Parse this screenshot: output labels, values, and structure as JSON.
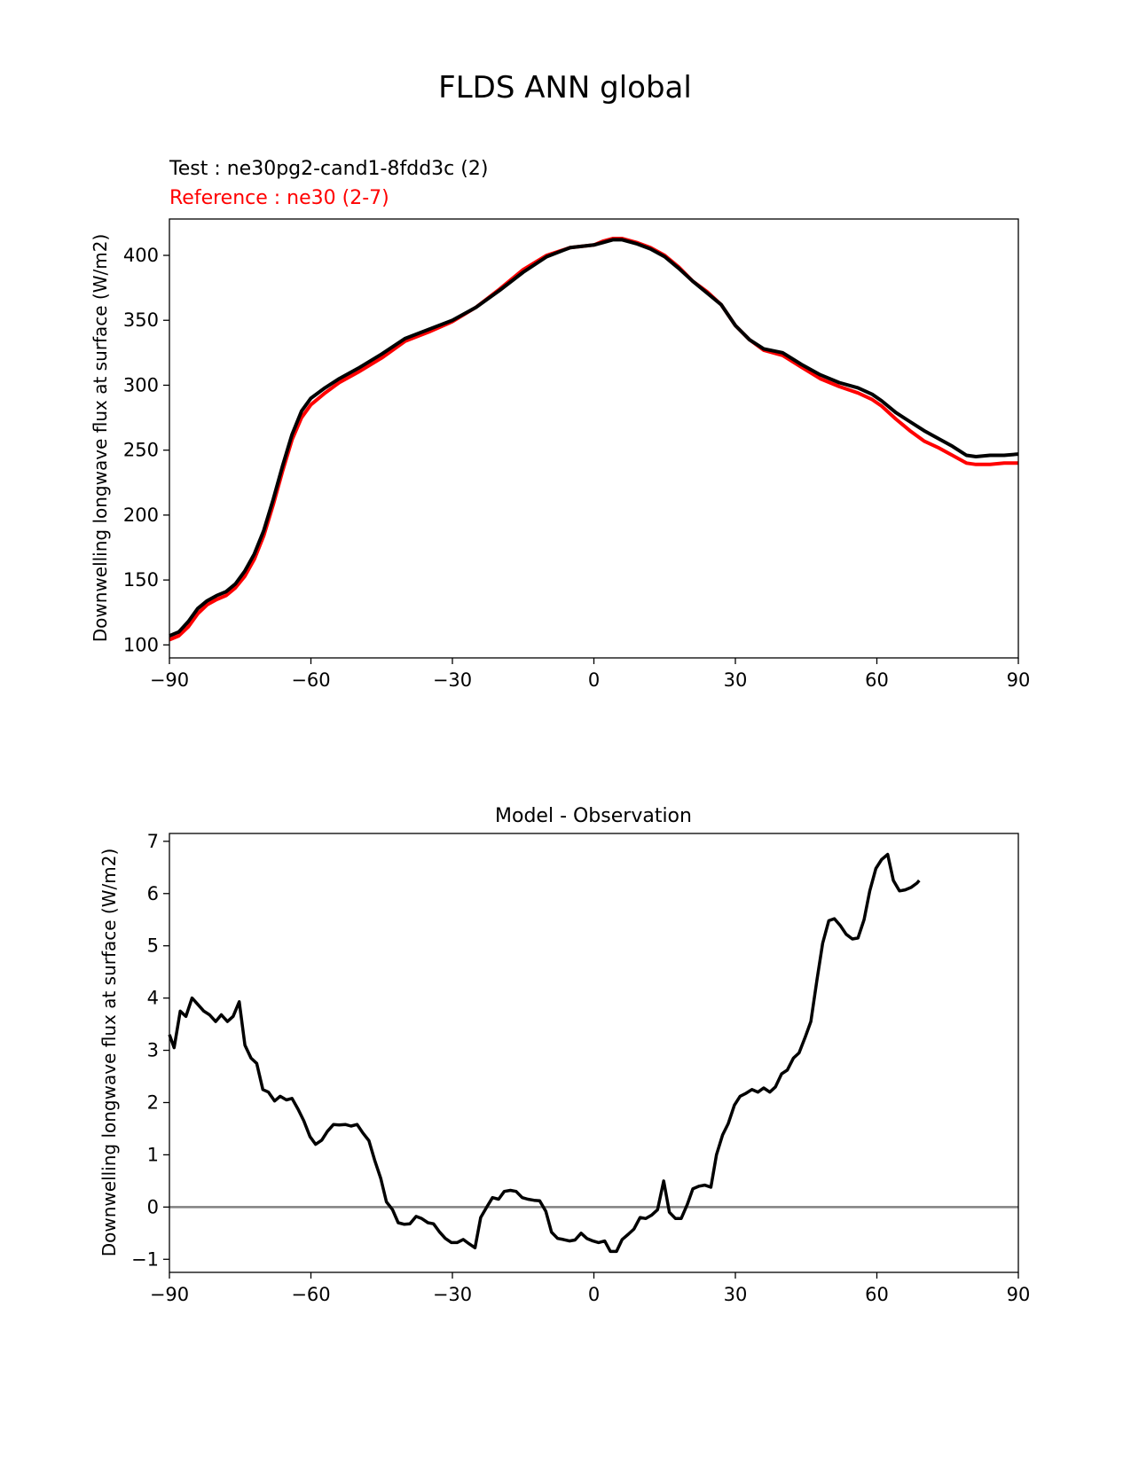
{
  "figure": {
    "title": "FLDS ANN global"
  },
  "chart_data": [
    {
      "type": "line",
      "panel": "top",
      "title": "",
      "subtitle_test": "Test : ne30pg2-cand1-8fdd3c (2)",
      "subtitle_reference": "Reference : ne30 (2-7)",
      "xlabel": "",
      "ylabel": "Downwelling longwave flux at surface (W/m2)",
      "xlim": [
        -90,
        90
      ],
      "ylim": [
        90,
        428
      ],
      "xticks": [
        -90,
        -60,
        -30,
        0,
        30,
        60,
        90
      ],
      "xtick_labels": [
        "−90",
        "−60",
        "−30",
        "0",
        "30",
        "60",
        "90"
      ],
      "yticks": [
        100,
        150,
        200,
        250,
        300,
        350,
        400
      ],
      "ytick_labels": [
        "100",
        "150",
        "200",
        "250",
        "300",
        "350",
        "400"
      ],
      "series": [
        {
          "name": "Test",
          "color": "#000000",
          "points": [
            [
              -90,
              107
            ],
            [
              -88,
              110
            ],
            [
              -86,
              118
            ],
            [
              -84,
              128
            ],
            [
              -82,
              134
            ],
            [
              -80,
              138
            ],
            [
              -78,
              141
            ],
            [
              -76,
              147
            ],
            [
              -74,
              157
            ],
            [
              -72,
              170
            ],
            [
              -70,
              188
            ],
            [
              -68,
              212
            ],
            [
              -66,
              238
            ],
            [
              -64,
              262
            ],
            [
              -62,
              280
            ],
            [
              -60,
              290
            ],
            [
              -57,
              298
            ],
            [
              -54,
              305
            ],
            [
              -50,
              313
            ],
            [
              -45,
              324
            ],
            [
              -40,
              336
            ],
            [
              -35,
              343
            ],
            [
              -30,
              350
            ],
            [
              -25,
              360
            ],
            [
              -20,
              373
            ],
            [
              -15,
              387
            ],
            [
              -10,
              399
            ],
            [
              -5,
              406
            ],
            [
              0,
              408
            ],
            [
              2,
              410
            ],
            [
              4,
              412
            ],
            [
              6,
              412
            ],
            [
              9,
              409
            ],
            [
              12,
              405
            ],
            [
              15,
              399
            ],
            [
              18,
              390
            ],
            [
              21,
              380
            ],
            [
              24,
              371
            ],
            [
              27,
              362
            ],
            [
              30,
              346
            ],
            [
              33,
              335
            ],
            [
              36,
              328
            ],
            [
              40,
              325
            ],
            [
              44,
              316
            ],
            [
              48,
              308
            ],
            [
              52,
              302
            ],
            [
              56,
              298
            ],
            [
              59,
              293
            ],
            [
              61,
              288
            ],
            [
              64,
              279
            ],
            [
              67,
              272
            ],
            [
              70,
              265
            ],
            [
              73,
              259
            ],
            [
              76,
              253
            ],
            [
              79,
              246
            ],
            [
              81,
              245
            ],
            [
              84,
              246
            ],
            [
              87,
              246
            ],
            [
              90,
              247
            ]
          ]
        },
        {
          "name": "Reference",
          "color": "#ff0000",
          "points": [
            [
              -90,
              104
            ],
            [
              -88,
              107
            ],
            [
              -86,
              114
            ],
            [
              -84,
              124
            ],
            [
              -82,
              131
            ],
            [
              -80,
              135
            ],
            [
              -78,
              138
            ],
            [
              -76,
              144
            ],
            [
              -74,
              153
            ],
            [
              -72,
              166
            ],
            [
              -70,
              184
            ],
            [
              -68,
              208
            ],
            [
              -66,
              234
            ],
            [
              -64,
              258
            ],
            [
              -62,
              275
            ],
            [
              -60,
              285
            ],
            [
              -57,
              294
            ],
            [
              -54,
              302
            ],
            [
              -50,
              310
            ],
            [
              -45,
              321
            ],
            [
              -40,
              334
            ],
            [
              -35,
              341
            ],
            [
              -30,
              349
            ],
            [
              -25,
              360
            ],
            [
              -20,
              374
            ],
            [
              -15,
              389
            ],
            [
              -10,
              400
            ],
            [
              -5,
              406
            ],
            [
              0,
              408
            ],
            [
              2,
              411
            ],
            [
              4,
              413
            ],
            [
              6,
              413
            ],
            [
              9,
              410
            ],
            [
              12,
              406
            ],
            [
              15,
              400
            ],
            [
              18,
              391
            ],
            [
              21,
              380
            ],
            [
              24,
              372
            ],
            [
              27,
              362
            ],
            [
              30,
              346
            ],
            [
              33,
              335
            ],
            [
              36,
              327
            ],
            [
              40,
              323
            ],
            [
              44,
              314
            ],
            [
              48,
              305
            ],
            [
              52,
              299
            ],
            [
              56,
              294
            ],
            [
              59,
              289
            ],
            [
              61,
              284
            ],
            [
              64,
              274
            ],
            [
              67,
              265
            ],
            [
              70,
              257
            ],
            [
              73,
              252
            ],
            [
              76,
              246
            ],
            [
              79,
              240
            ],
            [
              81,
              239
            ],
            [
              84,
              239
            ],
            [
              87,
              240
            ],
            [
              90,
              240
            ]
          ]
        }
      ]
    },
    {
      "type": "line",
      "panel": "bottom",
      "title": "Model - Observation",
      "xlabel": "",
      "ylabel": "Downwelling longwave flux at surface (W/m2)",
      "xlim": [
        -90,
        90
      ],
      "ylim": [
        -1.25,
        7.15
      ],
      "xticks": [
        -90,
        -60,
        -30,
        0,
        30,
        60,
        90
      ],
      "xtick_labels": [
        "−90",
        "−60",
        "−30",
        "0",
        "30",
        "60",
        "90"
      ],
      "yticks": [
        -1,
        0,
        1,
        2,
        3,
        4,
        5,
        6,
        7
      ],
      "ytick_labels": [
        "−1",
        "0",
        "1",
        "2",
        "3",
        "4",
        "5",
        "6",
        "7"
      ],
      "zero_line": 0,
      "series": [
        {
          "name": "Model - Observation",
          "color": "#000000",
          "points": [
            [
              -90,
              3.3
            ],
            [
              -89,
              3.05
            ],
            [
              -87.7,
              3.75
            ],
            [
              -86.5,
              3.65
            ],
            [
              -85.2,
              4.0
            ],
            [
              -84,
              3.88
            ],
            [
              -82.7,
              3.75
            ],
            [
              -81.5,
              3.68
            ],
            [
              -80.2,
              3.55
            ],
            [
              -79,
              3.68
            ],
            [
              -77.7,
              3.55
            ],
            [
              -76.5,
              3.65
            ],
            [
              -75.2,
              3.93
            ],
            [
              -74,
              3.1
            ],
            [
              -72.7,
              2.85
            ],
            [
              -71.5,
              2.75
            ],
            [
              -70.2,
              2.25
            ],
            [
              -69,
              2.2
            ],
            [
              -67.7,
              2.03
            ],
            [
              -66.5,
              2.12
            ],
            [
              -65.2,
              2.05
            ],
            [
              -64,
              2.08
            ],
            [
              -62.7,
              1.87
            ],
            [
              -61.5,
              1.65
            ],
            [
              -60.2,
              1.35
            ],
            [
              -59,
              1.2
            ],
            [
              -57.7,
              1.28
            ],
            [
              -56.5,
              1.45
            ],
            [
              -55.2,
              1.58
            ],
            [
              -54,
              1.57
            ],
            [
              -52.7,
              1.58
            ],
            [
              -51.5,
              1.55
            ],
            [
              -50.2,
              1.58
            ],
            [
              -49,
              1.42
            ],
            [
              -47.7,
              1.27
            ],
            [
              -46.5,
              0.9
            ],
            [
              -45.2,
              0.55
            ],
            [
              -44,
              0.1
            ],
            [
              -42.7,
              -0.05
            ],
            [
              -41.5,
              -0.3
            ],
            [
              -40.2,
              -0.33
            ],
            [
              -39,
              -0.32
            ],
            [
              -37.7,
              -0.18
            ],
            [
              -36.5,
              -0.22
            ],
            [
              -35.2,
              -0.3
            ],
            [
              -34,
              -0.32
            ],
            [
              -32.7,
              -0.48
            ],
            [
              -31.5,
              -0.6
            ],
            [
              -30.2,
              -0.68
            ],
            [
              -29,
              -0.68
            ],
            [
              -27.7,
              -0.62
            ],
            [
              -26.5,
              -0.7
            ],
            [
              -25.2,
              -0.78
            ],
            [
              -24,
              -0.2
            ],
            [
              -22.7,
              0.0
            ],
            [
              -21.5,
              0.18
            ],
            [
              -20.2,
              0.15
            ],
            [
              -19,
              0.3
            ],
            [
              -17.7,
              0.32
            ],
            [
              -16.5,
              0.3
            ],
            [
              -15.2,
              0.18
            ],
            [
              -14,
              0.15
            ],
            [
              -12.7,
              0.13
            ],
            [
              -11.5,
              0.12
            ],
            [
              -10.2,
              -0.08
            ],
            [
              -9,
              -0.48
            ],
            [
              -7.7,
              -0.6
            ],
            [
              -6.5,
              -0.62
            ],
            [
              -5.2,
              -0.65
            ],
            [
              -4,
              -0.63
            ],
            [
              -2.7,
              -0.5
            ],
            [
              -1.5,
              -0.6
            ],
            [
              -0.2,
              -0.65
            ],
            [
              1,
              -0.68
            ],
            [
              2.3,
              -0.65
            ],
            [
              3.5,
              -0.85
            ],
            [
              4.8,
              -0.85
            ],
            [
              6,
              -0.62
            ],
            [
              7.3,
              -0.52
            ],
            [
              8.5,
              -0.42
            ],
            [
              9.8,
              -0.2
            ],
            [
              11,
              -0.22
            ],
            [
              12.3,
              -0.15
            ],
            [
              13.5,
              -0.05
            ],
            [
              14.8,
              0.5
            ],
            [
              16,
              -0.1
            ],
            [
              17.3,
              -0.22
            ],
            [
              18.5,
              -0.22
            ],
            [
              19.8,
              0.05
            ],
            [
              21,
              0.35
            ],
            [
              22.3,
              0.4
            ],
            [
              23.5,
              0.42
            ],
            [
              24.8,
              0.38
            ],
            [
              26,
              1.0
            ],
            [
              27.3,
              1.38
            ],
            [
              28.5,
              1.6
            ],
            [
              29.8,
              1.95
            ],
            [
              31,
              2.12
            ],
            [
              32.3,
              2.18
            ],
            [
              33.5,
              2.25
            ],
            [
              34.8,
              2.2
            ],
            [
              36,
              2.28
            ],
            [
              37.3,
              2.2
            ],
            [
              38.5,
              2.3
            ],
            [
              39.8,
              2.55
            ],
            [
              41,
              2.62
            ],
            [
              42.3,
              2.85
            ],
            [
              43.5,
              2.95
            ],
            [
              44.8,
              3.25
            ],
            [
              46,
              3.55
            ],
            [
              47.3,
              4.35
            ],
            [
              48.5,
              5.05
            ],
            [
              49.8,
              5.48
            ],
            [
              51,
              5.52
            ],
            [
              52.3,
              5.38
            ],
            [
              53.5,
              5.22
            ],
            [
              54.8,
              5.13
            ],
            [
              56,
              5.15
            ],
            [
              57.3,
              5.5
            ],
            [
              58.5,
              6.05
            ],
            [
              59.8,
              6.48
            ],
            [
              61,
              6.65
            ],
            [
              62.3,
              6.75
            ],
            [
              63.5,
              6.25
            ],
            [
              64.8,
              6.05
            ],
            [
              66,
              6.07
            ],
            [
              67.3,
              6.12
            ],
            [
              68.5,
              6.2
            ],
            [
              69,
              6.25
            ]
          ]
        }
      ]
    }
  ]
}
